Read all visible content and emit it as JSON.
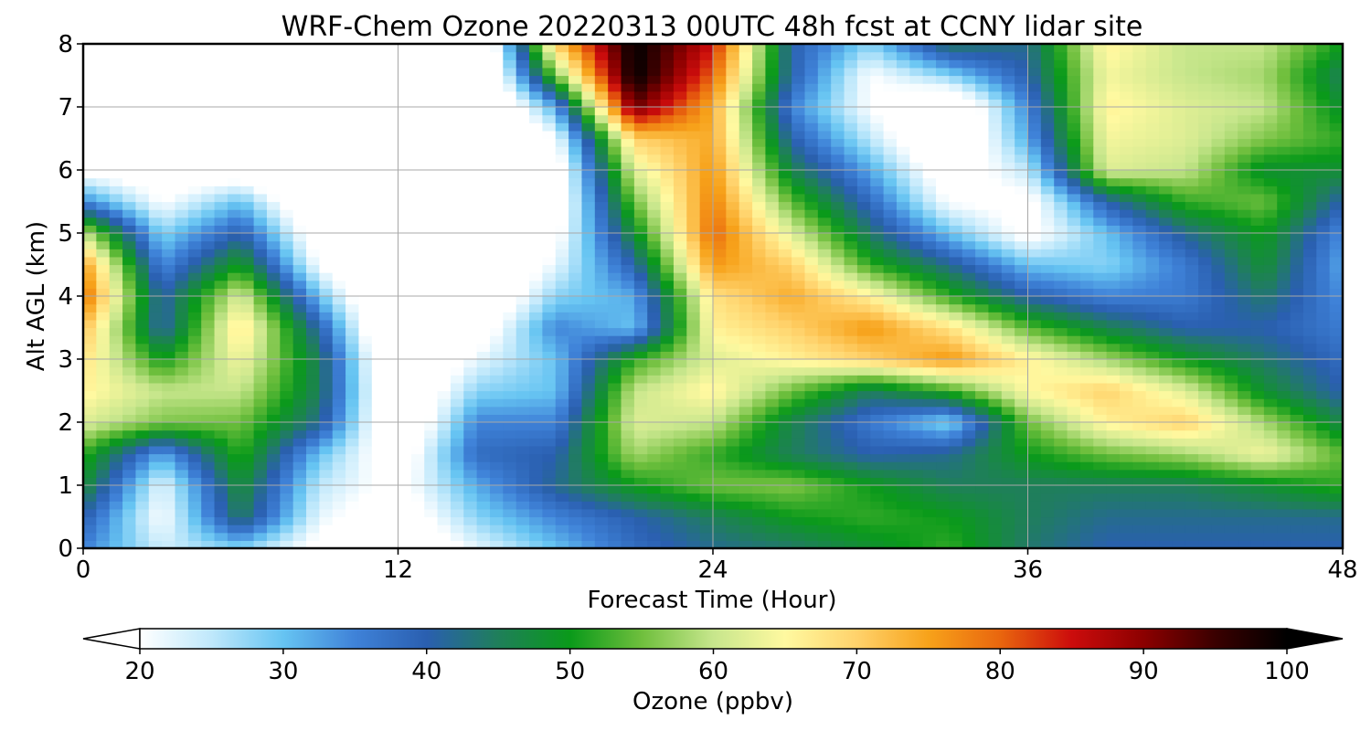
{
  "chart_data": {
    "type": "heatmap",
    "title": "WRF-Chem Ozone  20220313 00UTC 48h fcst at CCNY lidar site",
    "xlabel": "Forecast Time (Hour)",
    "ylabel": "Alt AGL (km)",
    "xlim": [
      0,
      48
    ],
    "ylim": [
      0,
      8
    ],
    "x_ticks": [
      "0",
      "12",
      "24",
      "36",
      "48"
    ],
    "y_ticks": [
      "0",
      "1",
      "2",
      "3",
      "4",
      "5",
      "6",
      "7",
      "8"
    ],
    "grid": true,
    "colorbar": {
      "label": "Ozone  (ppbv)",
      "min": 20,
      "max": 100,
      "extend": "both",
      "ticks": [
        "20",
        "30",
        "40",
        "50",
        "60",
        "70",
        "80",
        "90",
        "100"
      ],
      "colors": [
        "#ffffff",
        "#bfe8fb",
        "#66c4f2",
        "#3f82d8",
        "#2a5fb0",
        "#1f7f5a",
        "#0a9a1a",
        "#6fbf3d",
        "#c7e68c",
        "#fff9a0",
        "#ffd26b",
        "#f7a21a",
        "#e9660e",
        "#cc0c0c",
        "#8c0000",
        "#3a0000",
        "#000000"
      ]
    },
    "ozone_ppbv": {
      "hours": [
        0,
        3,
        6,
        9,
        12,
        15,
        18,
        21,
        24,
        27,
        30,
        33,
        36,
        39,
        42,
        45,
        48
      ],
      "alt_km": [
        0,
        0.5,
        1,
        1.5,
        2,
        2.5,
        3,
        3.5,
        4,
        4.5,
        5,
        5.5,
        6,
        6.5,
        7,
        7.5,
        8
      ],
      "rows": [
        [
          35,
          24,
          28,
          18,
          12,
          22,
          30,
          38,
          42,
          44,
          48,
          52,
          44,
          40,
          40,
          40,
          40
        ],
        [
          40,
          20,
          45,
          22,
          15,
          28,
          35,
          40,
          45,
          50,
          52,
          50,
          45,
          42,
          42,
          42,
          42
        ],
        [
          48,
          22,
          48,
          25,
          18,
          32,
          42,
          50,
          55,
          56,
          50,
          45,
          45,
          45,
          45,
          48,
          52
        ],
        [
          52,
          32,
          52,
          30,
          15,
          38,
          40,
          58,
          52,
          45,
          40,
          42,
          50,
          55,
          58,
          64,
          54
        ],
        [
          62,
          56,
          55,
          42,
          10,
          35,
          35,
          62,
          60,
          46,
          36,
          28,
          55,
          66,
          70,
          58,
          46
        ],
        [
          66,
          60,
          60,
          45,
          10,
          28,
          30,
          60,
          66,
          55,
          45,
          52,
          65,
          70,
          62,
          48,
          40
        ],
        [
          68,
          50,
          64,
          45,
          8,
          22,
          30,
          52,
          62,
          66,
          70,
          76,
          66,
          58,
          50,
          44,
          38
        ],
        [
          72,
          40,
          68,
          40,
          5,
          15,
          35,
          30,
          66,
          70,
          76,
          68,
          54,
          46,
          40,
          40,
          36
        ],
        [
          80,
          40,
          62,
          30,
          5,
          10,
          28,
          32,
          68,
          74,
          66,
          52,
          40,
          35,
          36,
          44,
          34
        ],
        [
          76,
          34,
          50,
          20,
          5,
          8,
          22,
          40,
          76,
          70,
          52,
          42,
          30,
          28,
          36,
          48,
          32
        ],
        [
          60,
          28,
          40,
          15,
          5,
          5,
          18,
          48,
          80,
          62,
          44,
          30,
          18,
          30,
          42,
          50,
          34
        ],
        [
          35,
          20,
          30,
          10,
          5,
          5,
          15,
          55,
          78,
          54,
          38,
          20,
          18,
          40,
          52,
          55,
          40
        ],
        [
          18,
          15,
          15,
          5,
          5,
          5,
          15,
          62,
          76,
          46,
          32,
          15,
          25,
          62,
          60,
          48,
          48
        ],
        [
          10,
          10,
          10,
          5,
          5,
          5,
          20,
          70,
          74,
          40,
          25,
          10,
          32,
          64,
          62,
          56,
          52
        ],
        [
          8,
          5,
          8,
          5,
          5,
          5,
          32,
          92,
          74,
          35,
          20,
          10,
          35,
          66,
          62,
          60,
          48
        ],
        [
          5,
          5,
          5,
          5,
          5,
          5,
          55,
          100,
          80,
          40,
          20,
          28,
          40,
          64,
          60,
          58,
          45
        ],
        [
          5,
          5,
          5,
          5,
          5,
          5,
          70,
          100,
          85,
          40,
          28,
          45,
          42,
          66,
          60,
          60,
          50
        ]
      ]
    }
  }
}
